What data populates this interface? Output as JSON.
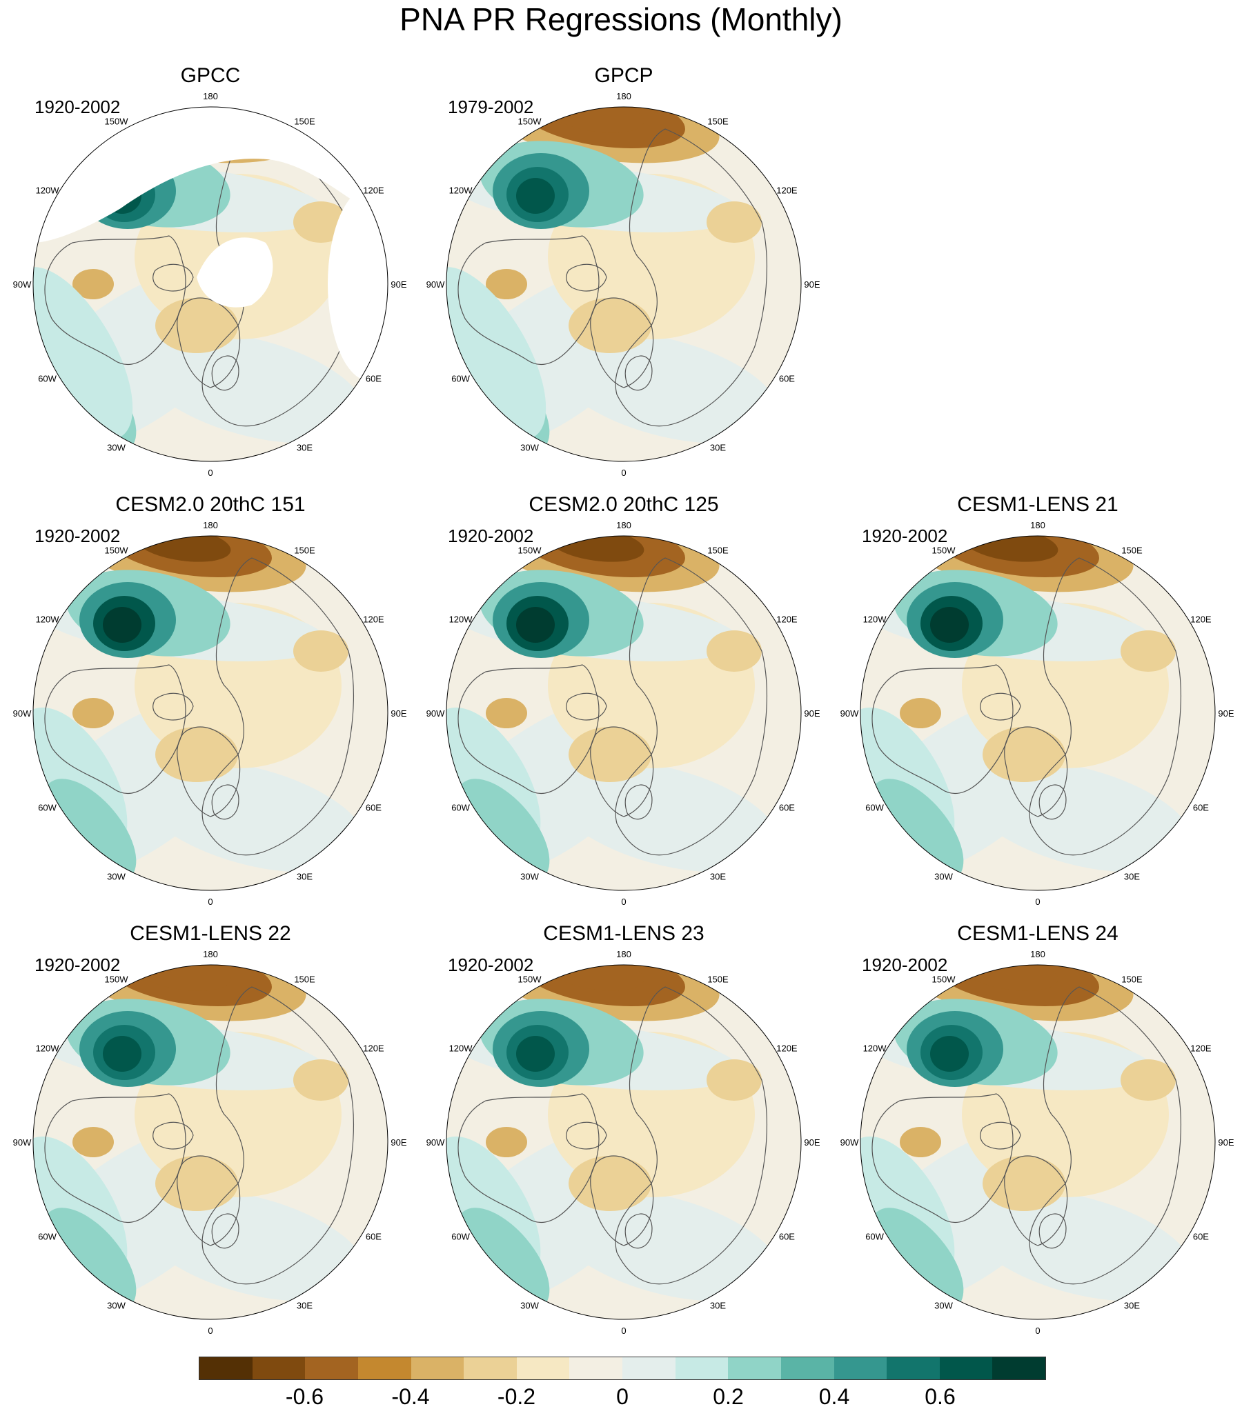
{
  "title": "PNA PR Regressions (Monthly)",
  "lon_labels": {
    "l180": "180",
    "l150e": "150E",
    "l120e": "120E",
    "l90e": "90E",
    "l60e": "60E",
    "l30e": "30E",
    "l0": "0",
    "l30w": "30W",
    "l60w": "60W",
    "l90w": "90W",
    "l120w": "120W",
    "l150w": "150W"
  },
  "panels": [
    {
      "name": "GPCC",
      "period": "1920-2002",
      "style": "obs-gaps"
    },
    {
      "name": "GPCP",
      "period": "1979-2002",
      "style": "obs"
    },
    {
      "name": "CESM2.0 20thC 151",
      "period": "1920-2002",
      "style": "model-strong"
    },
    {
      "name": "CESM2.0 20thC 125",
      "period": "1920-2002",
      "style": "model-strong"
    },
    {
      "name": "CESM1-LENS 21",
      "period": "1920-2002",
      "style": "model-strong"
    },
    {
      "name": "CESM1-LENS 22",
      "period": "1920-2002",
      "style": "model"
    },
    {
      "name": "CESM1-LENS 23",
      "period": "1920-2002",
      "style": "model"
    },
    {
      "name": "CESM1-LENS 24",
      "period": "1920-2002",
      "style": "model"
    }
  ],
  "colorbar": {
    "colors": [
      "#543005",
      "#7f4a0f",
      "#a36421",
      "#c4882f",
      "#dab266",
      "#ebd196",
      "#f6e8c3",
      "#f3efe3",
      "#e4eeec",
      "#c7eae5",
      "#90d4c7",
      "#5ab4a6",
      "#35978f",
      "#12756c",
      "#01574b",
      "#003c30"
    ],
    "labels": [
      "-0.6",
      "-0.4",
      "-0.2",
      "0",
      "0.2",
      "0.4",
      "0.6"
    ]
  }
}
